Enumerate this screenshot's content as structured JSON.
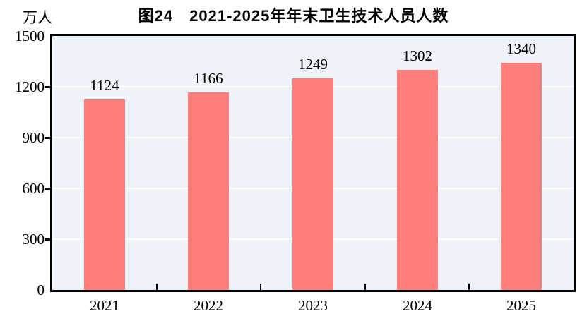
{
  "header": {
    "title": "图24　2021-2025年年末卫生技术人员人数",
    "unit_label": "万人"
  },
  "chart_data": {
    "type": "bar",
    "title": "图24　2021-2025年年末卫生技术人员人数",
    "categories": [
      "2021",
      "2022",
      "2023",
      "2024",
      "2025"
    ],
    "values": [
      1124,
      1166,
      1249,
      1302,
      1340
    ],
    "value_labels": [
      "1124",
      "1166",
      "1249",
      "1302",
      "1340"
    ],
    "xlabel": "",
    "ylabel": "万人",
    "ylim": [
      0,
      1500
    ],
    "yticks": [
      0,
      300,
      600,
      900,
      1200,
      1500
    ],
    "grid": true,
    "legend": false,
    "colors": {
      "bar": "#FC7F7B",
      "plot_background": "#EDF3F8",
      "gridline": "#FFFFFF",
      "axis": "#000000",
      "text": "#000000"
    }
  }
}
